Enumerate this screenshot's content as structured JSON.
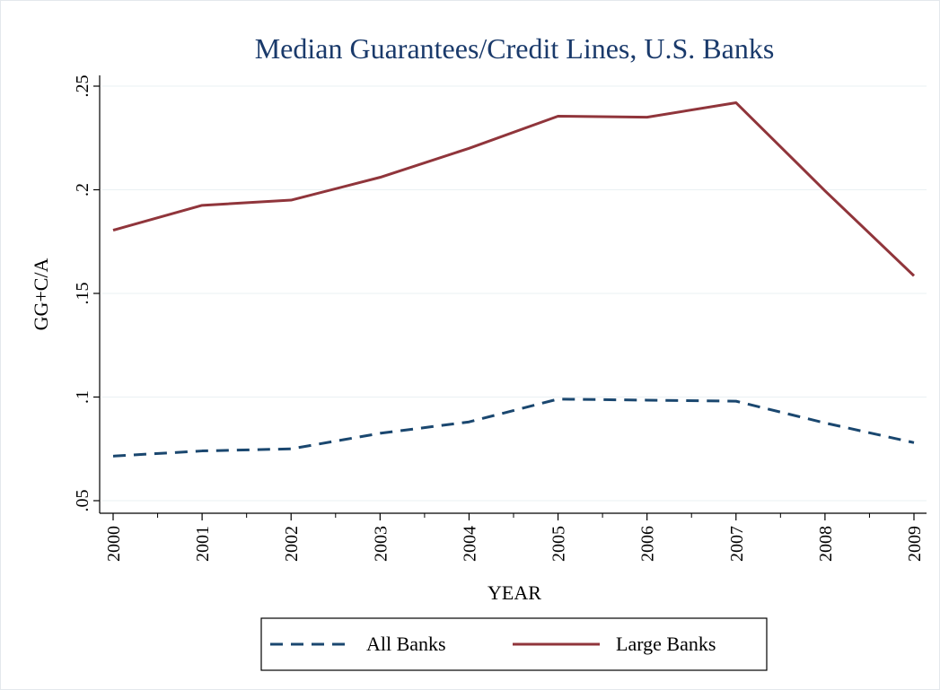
{
  "chart_data": {
    "type": "line",
    "title": "Median Guarantees/Credit Lines, U.S. Banks",
    "xlabel": "YEAR",
    "ylabel": "GG+C/A",
    "x": [
      2000,
      2001,
      2002,
      2003,
      2004,
      2005,
      2006,
      2007,
      2008,
      2009
    ],
    "x_tick_labels": [
      "2000",
      "2001",
      "2002",
      "2003",
      "2004",
      "2005",
      "2006",
      "2007",
      "2008",
      "2009"
    ],
    "xlim": [
      2000,
      2009
    ],
    "ylim": [
      0.05,
      0.25
    ],
    "y_ticks": [
      0.05,
      0.1,
      0.15,
      0.2,
      0.25
    ],
    "y_tick_labels": [
      ".05",
      ".1",
      ".15",
      ".2",
      ".25"
    ],
    "grid": true,
    "legend_position": "bottom",
    "series": [
      {
        "name": "All Banks",
        "style": "dashed",
        "color": "#1a476f",
        "values": [
          0.0715,
          0.074,
          0.075,
          0.0825,
          0.088,
          0.099,
          0.0985,
          0.098,
          0.0875,
          0.078
        ]
      },
      {
        "name": "Large Banks",
        "style": "solid",
        "color": "#90353b",
        "values": [
          0.1805,
          0.1925,
          0.195,
          0.206,
          0.22,
          0.2355,
          0.235,
          0.242,
          0.1995,
          0.1585
        ]
      }
    ],
    "title_color": "#1a3a6b"
  }
}
